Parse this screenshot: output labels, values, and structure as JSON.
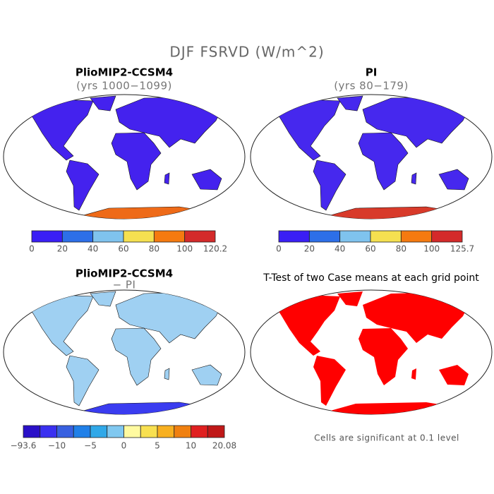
{
  "title": "DJF FSRVD (W/m^2)",
  "panels": [
    {
      "title": "PlioMIP2-CCSM4",
      "subtitle": "(yrs 1000−1099)",
      "colorbar": {
        "colors": [
          "#3a1ef5",
          "#2d6fe8",
          "#7fc3ee",
          "#f5e050",
          "#f57a10",
          "#d42a2a"
        ],
        "labels": [
          "0",
          "20",
          "40",
          "60",
          "80",
          "100",
          "120.2"
        ]
      }
    },
    {
      "title": "PI",
      "subtitle": "(yrs 80−179)",
      "colorbar": {
        "colors": [
          "#3a1ef5",
          "#2d6fe8",
          "#7fc3ee",
          "#f5e050",
          "#f57a10",
          "#d42a2a"
        ],
        "labels": [
          "0",
          "20",
          "40",
          "60",
          "80",
          "100",
          "125.7"
        ]
      }
    },
    {
      "title": "PlioMIP2-CCSM4",
      "subtitle": "− PI",
      "colorbar": {
        "colors": [
          "#2a10c8",
          "#3a30f0",
          "#3860e0",
          "#2080e8",
          "#30a8e8",
          "#80c8f0",
          "#fffaa0",
          "#f8e050",
          "#f8b020",
          "#f08010",
          "#e02020",
          "#c01818"
        ],
        "labels": [
          "−93.6",
          "−10",
          "−5",
          "0",
          "5",
          "10",
          "20.08"
        ]
      }
    },
    {
      "title": "T-Test of two Case means at each grid point",
      "note": "Cells are significant at 0.1 level"
    }
  ]
}
